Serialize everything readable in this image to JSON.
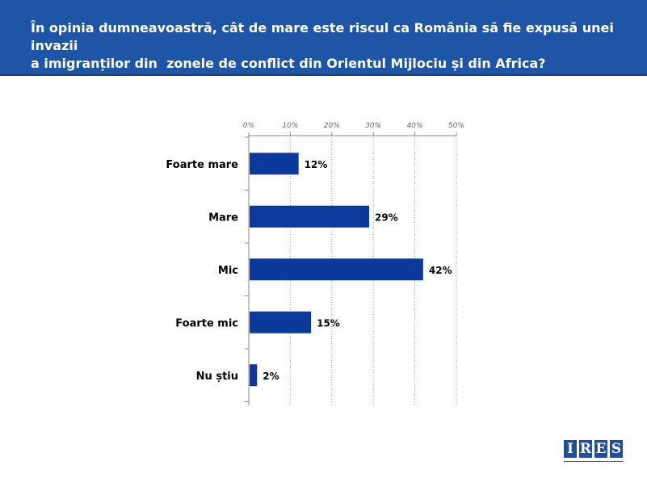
{
  "header": {
    "title": "În opinia dumneavoastră, cât de mare este riscul ca România să fie expusă unei invazii\na imigranților din  zonele de conflict din Orientul Mijlociu și din Africa?"
  },
  "logo": {
    "letters": [
      "I",
      "R",
      "E",
      "S"
    ]
  },
  "colors": {
    "header": "#1f55a6",
    "bar": "#0b3a9c"
  },
  "chart_data": {
    "type": "bar",
    "orientation": "horizontal",
    "categories": [
      "Foarte mare",
      "Mare",
      "Mic",
      "Foarte mic",
      "Nu știu"
    ],
    "values": [
      12,
      29,
      42,
      15,
      2
    ],
    "value_labels": [
      "12%",
      "29%",
      "42%",
      "15%",
      "2%"
    ],
    "xlim": [
      0,
      50
    ],
    "x_ticks": [
      0,
      10,
      20,
      30,
      40,
      50
    ],
    "x_tick_labels": [
      "0%",
      "10%",
      "20%",
      "30%",
      "40%",
      "50%"
    ],
    "axis_position": "top",
    "grid": true,
    "legend": "none"
  }
}
